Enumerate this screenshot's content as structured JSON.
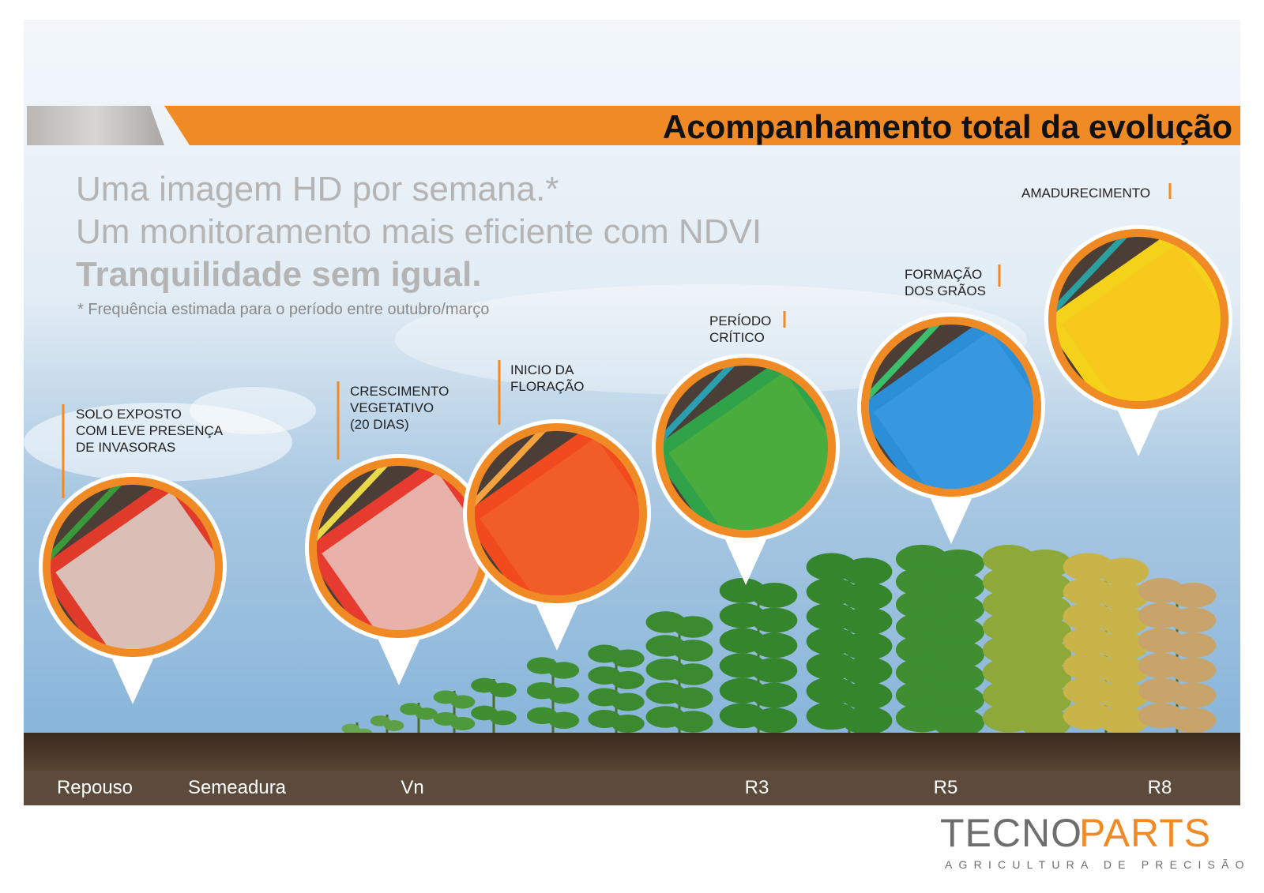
{
  "header": {
    "title": "Acompanhamento total da evolução"
  },
  "intro": {
    "lines": [
      "Uma imagem HD por semana.*",
      "Um monitoramento mais eficiente com NDVI",
      "Tranquilidade sem igual."
    ],
    "footnote": "* Frequência estimada para o período entre outubro/março"
  },
  "stages": [
    {
      "label": [
        "SOLO EXPOSTO",
        "COM LEVE PRESENÇA",
        "DE INVASORAS"
      ]
    },
    {
      "label": [
        "CRESCIMENTO",
        "VEGETATIVO",
        "(20 DIAS)"
      ]
    },
    {
      "label": [
        "INICIO DA",
        "FLORAÇÃO"
      ]
    },
    {
      "label": [
        "PERÍODO",
        "CRÍTICO"
      ]
    },
    {
      "label": [
        "FORMAÇÃO",
        "DOS GRÃOS"
      ]
    },
    {
      "label": [
        "AMADURECIMENTO"
      ]
    }
  ],
  "phases": [
    "Repouso",
    "Semeadura",
    "Vn",
    "R3",
    "R5",
    "R8"
  ],
  "logo": {
    "part1": "TECNO",
    "part2": "PARTS",
    "tagline": "AGRICULTURA DE PRECISÃO"
  }
}
